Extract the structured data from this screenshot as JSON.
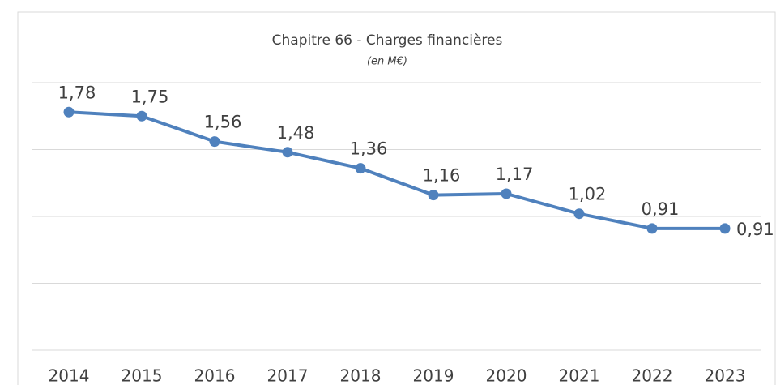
{
  "chart_data": {
    "type": "line",
    "title": "Chapitre 66 - Charges financières",
    "subtitle": "(en M€)",
    "categories": [
      "2014",
      "2015",
      "2016",
      "2017",
      "2018",
      "2019",
      "2020",
      "2021",
      "2022",
      "2023"
    ],
    "series": [
      {
        "name": "Charges financières",
        "color": "#4f81bd",
        "values": [
          1.78,
          1.75,
          1.56,
          1.48,
          1.36,
          1.16,
          1.17,
          1.02,
          0.91,
          0.91
        ],
        "value_labels": [
          "1,78",
          "1,75",
          "1,56",
          "1,48",
          "1,36",
          "1,16",
          "1,17",
          "1,02",
          "0,91",
          "0,91"
        ]
      }
    ],
    "ylim": [
      0,
      2
    ],
    "yticks": [
      0,
      0.5,
      1,
      1.5,
      2
    ],
    "grid": true
  }
}
